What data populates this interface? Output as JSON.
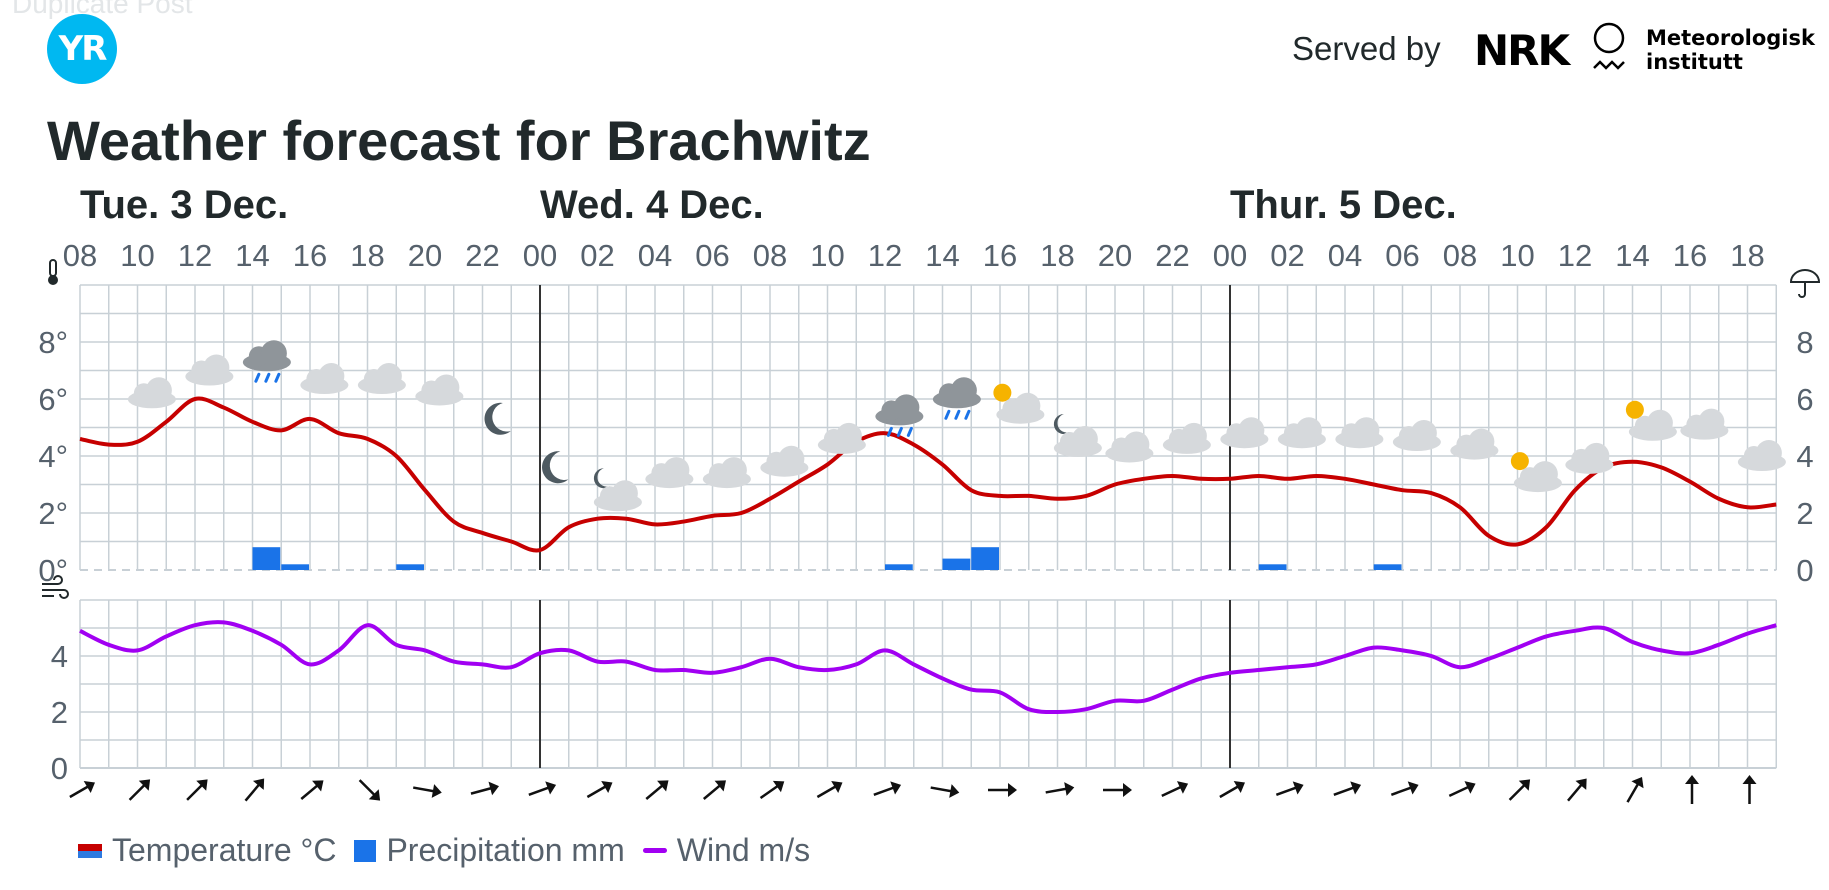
{
  "header": {
    "ghost_text": "Duplicate Post",
    "logo_text": "YR",
    "served_by": "Served by",
    "nrk_logo": "NRK",
    "met_logo_line1": "Meteorologisk",
    "met_logo_line2": "institutt",
    "title": "Weather forecast for Brachwitz"
  },
  "colors": {
    "temperature": "#c60000",
    "temperature_legend_bottom": "#2d7ae0",
    "precipitation": "#1a73e8",
    "wind": "#a100f2",
    "grid": "#c8d0d6",
    "midnight": "#333333",
    "text": "#56616c"
  },
  "legend": {
    "temperature": "Temperature °C",
    "precipitation": "Precipitation mm",
    "wind": "Wind m/s"
  },
  "chart_data": {
    "type": "line",
    "day_labels": [
      {
        "label": "Tue. 3 Dec.",
        "start_hour": 0
      },
      {
        "label": "Wed. 4 Dec.",
        "start_hour": 16
      },
      {
        "label": "Thur. 5 Dec.",
        "start_hour": 40
      }
    ],
    "hour_ticks": [
      "08",
      "10",
      "12",
      "14",
      "16",
      "18",
      "20",
      "22",
      "00",
      "02",
      "04",
      "06",
      "08",
      "10",
      "12",
      "14",
      "16",
      "18",
      "20",
      "22",
      "00",
      "02",
      "04",
      "06",
      "08",
      "10",
      "12",
      "14",
      "16",
      "18"
    ],
    "temperature_axis": {
      "ticks": [
        "0°",
        "2°",
        "4°",
        "6°",
        "8°"
      ],
      "right_ticks": [
        "0",
        "2",
        "4",
        "6",
        "8"
      ],
      "ylim": [
        0,
        10
      ]
    },
    "wind_axis": {
      "ticks": [
        "0",
        "2",
        "4"
      ],
      "ylim": [
        0,
        6
      ]
    },
    "series": [
      {
        "name": "Temperature °C",
        "x_hours": [
          0,
          1,
          2,
          3,
          4,
          5,
          6,
          7,
          8,
          9,
          10,
          11,
          12,
          13,
          14,
          15,
          16,
          17,
          18,
          19,
          20,
          21,
          22,
          23,
          24,
          25,
          26,
          27,
          28,
          29,
          30,
          31,
          32,
          33,
          34,
          35,
          36,
          37,
          38,
          39,
          40,
          41,
          42,
          43,
          44,
          45,
          46,
          47,
          48,
          49,
          50,
          51,
          52,
          53,
          54,
          55,
          56,
          57,
          58,
          59
        ],
        "values": [
          4.6,
          4.4,
          4.5,
          5.2,
          6.0,
          5.7,
          5.2,
          4.9,
          5.3,
          4.8,
          4.6,
          4.0,
          2.8,
          1.7,
          1.3,
          1.0,
          0.7,
          1.5,
          1.8,
          1.8,
          1.6,
          1.7,
          1.9,
          2.0,
          2.5,
          3.1,
          3.7,
          4.5,
          4.8,
          4.4,
          3.7,
          2.8,
          2.6,
          2.6,
          2.5,
          2.6,
          3.0,
          3.2,
          3.3,
          3.2,
          3.2,
          3.3,
          3.2,
          3.3,
          3.2,
          3.0,
          2.8,
          2.7,
          2.2,
          1.2,
          0.9,
          1.5,
          2.8,
          3.6,
          3.8,
          3.6,
          3.1,
          2.5,
          2.2,
          2.3
        ]
      },
      {
        "name": "Precipitation mm",
        "x_hours": [
          6,
          7,
          11,
          28,
          30,
          31,
          41,
          45
        ],
        "values": [
          0.4,
          0.1,
          0.1,
          0.1,
          0.2,
          0.4,
          0.1,
          0.1
        ]
      },
      {
        "name": "Wind m/s",
        "x_hours": [
          0,
          1,
          2,
          3,
          4,
          5,
          6,
          7,
          8,
          9,
          10,
          11,
          12,
          13,
          14,
          15,
          16,
          17,
          18,
          19,
          20,
          21,
          22,
          23,
          24,
          25,
          26,
          27,
          28,
          29,
          30,
          31,
          32,
          33,
          34,
          35,
          36,
          37,
          38,
          39,
          40,
          41,
          42,
          43,
          44,
          45,
          46,
          47,
          48,
          49,
          50,
          51,
          52,
          53,
          54,
          55,
          56,
          57,
          58,
          59
        ],
        "values": [
          4.9,
          4.4,
          4.2,
          4.7,
          5.1,
          5.2,
          4.9,
          4.4,
          3.7,
          4.2,
          5.1,
          4.4,
          4.2,
          3.8,
          3.7,
          3.6,
          4.1,
          4.2,
          3.8,
          3.8,
          3.5,
          3.5,
          3.4,
          3.6,
          3.9,
          3.6,
          3.5,
          3.7,
          4.2,
          3.7,
          3.2,
          2.8,
          2.7,
          2.1,
          2.0,
          2.1,
          2.4,
          2.4,
          2.8,
          3.2,
          3.4,
          3.5,
          3.6,
          3.7,
          4.0,
          4.3,
          4.2,
          4.0,
          3.6,
          3.9,
          4.3,
          4.7,
          4.9,
          5.0,
          4.5,
          4.2,
          4.1,
          4.4,
          4.8,
          5.1
        ]
      }
    ],
    "weather_icons": [
      {
        "hour": 2,
        "icon": "cloud-icon",
        "temp_anchor": 6.2
      },
      {
        "hour": 4,
        "icon": "cloud-icon",
        "temp_anchor": 7.0
      },
      {
        "hour": 6,
        "icon": "rain-cloud-icon",
        "temp_anchor": 7.5
      },
      {
        "hour": 8,
        "icon": "cloud-icon",
        "temp_anchor": 6.7
      },
      {
        "hour": 10,
        "icon": "cloud-icon",
        "temp_anchor": 6.7
      },
      {
        "hour": 12,
        "icon": "cloud-icon",
        "temp_anchor": 6.3
      },
      {
        "hour": 14,
        "icon": "moon-icon",
        "temp_anchor": 5.3
      },
      {
        "hour": 16,
        "icon": "moon-icon",
        "temp_anchor": 3.6
      },
      {
        "hour": 18,
        "icon": "partly-cloudy-night-icon",
        "temp_anchor": 2.8
      },
      {
        "hour": 20,
        "icon": "cloud-icon",
        "temp_anchor": 3.4
      },
      {
        "hour": 22,
        "icon": "cloud-icon",
        "temp_anchor": 3.4
      },
      {
        "hour": 24,
        "icon": "cloud-icon",
        "temp_anchor": 3.8
      },
      {
        "hour": 26,
        "icon": "cloud-icon",
        "temp_anchor": 4.6
      },
      {
        "hour": 28,
        "icon": "rain-cloud-icon",
        "temp_anchor": 5.6
      },
      {
        "hour": 30,
        "icon": "rain-cloud-icon",
        "temp_anchor": 6.2
      },
      {
        "hour": 32,
        "icon": "partly-sunny-icon",
        "temp_anchor": 5.8
      },
      {
        "hour": 34,
        "icon": "partly-cloudy-night-icon",
        "temp_anchor": 4.7
      },
      {
        "hour": 36,
        "icon": "cloud-icon",
        "temp_anchor": 4.3
      },
      {
        "hour": 38,
        "icon": "cloud-icon",
        "temp_anchor": 4.6
      },
      {
        "hour": 40,
        "icon": "cloud-icon",
        "temp_anchor": 4.8
      },
      {
        "hour": 42,
        "icon": "cloud-icon",
        "temp_anchor": 4.8
      },
      {
        "hour": 44,
        "icon": "cloud-icon",
        "temp_anchor": 4.8
      },
      {
        "hour": 46,
        "icon": "cloud-icon",
        "temp_anchor": 4.7
      },
      {
        "hour": 48,
        "icon": "cloud-icon",
        "temp_anchor": 4.4
      },
      {
        "hour": 50,
        "icon": "partly-sunny-icon",
        "temp_anchor": 3.4
      },
      {
        "hour": 52,
        "icon": "cloud-icon",
        "temp_anchor": 3.9
      },
      {
        "hour": 54,
        "icon": "partly-sunny-icon",
        "temp_anchor": 5.2
      },
      {
        "hour": 56,
        "icon": "cloud-icon",
        "temp_anchor": 5.1
      },
      {
        "hour": 58,
        "icon": "cloud-icon",
        "temp_anchor": 4.0
      }
    ],
    "wind_directions": [
      {
        "hour": 0,
        "rotation": 60
      },
      {
        "hour": 2,
        "rotation": 45
      },
      {
        "hour": 4,
        "rotation": 45
      },
      {
        "hour": 6,
        "rotation": 40
      },
      {
        "hour": 8,
        "rotation": 50
      },
      {
        "hour": 10,
        "rotation": 135
      },
      {
        "hour": 12,
        "rotation": 100
      },
      {
        "hour": 14,
        "rotation": 75
      },
      {
        "hour": 16,
        "rotation": 70
      },
      {
        "hour": 18,
        "rotation": 60
      },
      {
        "hour": 20,
        "rotation": 50
      },
      {
        "hour": 22,
        "rotation": 50
      },
      {
        "hour": 24,
        "rotation": 55
      },
      {
        "hour": 26,
        "rotation": 60
      },
      {
        "hour": 28,
        "rotation": 70
      },
      {
        "hour": 30,
        "rotation": 100
      },
      {
        "hour": 32,
        "rotation": 90
      },
      {
        "hour": 34,
        "rotation": 80
      },
      {
        "hour": 36,
        "rotation": 90
      },
      {
        "hour": 38,
        "rotation": 65
      },
      {
        "hour": 40,
        "rotation": 60
      },
      {
        "hour": 42,
        "rotation": 70
      },
      {
        "hour": 44,
        "rotation": 70
      },
      {
        "hour": 46,
        "rotation": 70
      },
      {
        "hour": 48,
        "rotation": 65
      },
      {
        "hour": 50,
        "rotation": 45
      },
      {
        "hour": 52,
        "rotation": 40
      },
      {
        "hour": 54,
        "rotation": 30
      },
      {
        "hour": 56,
        "rotation": 0
      },
      {
        "hour": 58,
        "rotation": 0
      }
    ]
  }
}
